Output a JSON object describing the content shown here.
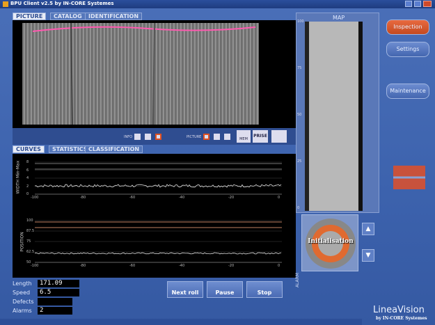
{
  "window": {
    "title": "BPU Client v2.5 by IN-CORE Systemes"
  },
  "picture_tabs": [
    "PICTURE",
    "CATALOG",
    "IDENTIFICATION"
  ],
  "picture_controls": [
    "INFO",
    "PICTURE",
    "MEM",
    "PRISE"
  ],
  "curve_tabs": [
    "CURVES",
    "STATISTICS",
    "CLASSIFICATION"
  ],
  "curves": [
    {
      "label": "WIDTH Min-Max",
      "yticks": [
        "8",
        "6",
        "4",
        "2",
        "0"
      ],
      "xticks": [
        "-100",
        "-80",
        "-60",
        "-40",
        "-20",
        "0"
      ]
    },
    {
      "label": "POSITION",
      "yticks": [
        "100",
        "87.5",
        "75",
        "62.5",
        "50"
      ],
      "xticks": [
        "-100",
        "-80",
        "-60",
        "-40",
        "-20",
        "0"
      ]
    }
  ],
  "map": {
    "title": "MAP",
    "scale": [
      "100",
      "75",
      "50",
      "25",
      "0"
    ]
  },
  "status_widget": "Initialisation",
  "alarm_label": "ALARM",
  "readouts": [
    {
      "label": "Length",
      "value": 171.09
    },
    {
      "label": "Speed",
      "value": 6.5
    },
    {
      "label": "Defects"
    },
    {
      "label": "Alarms",
      "value": 2
    }
  ],
  "controls": [
    "Next roll",
    "Pause",
    "Stop"
  ],
  "nav": [
    "Inspection",
    "Settings",
    "Maintenance"
  ],
  "brand": {
    "name": "LineaVision",
    "by": "by IN-CORE Systemes"
  }
}
